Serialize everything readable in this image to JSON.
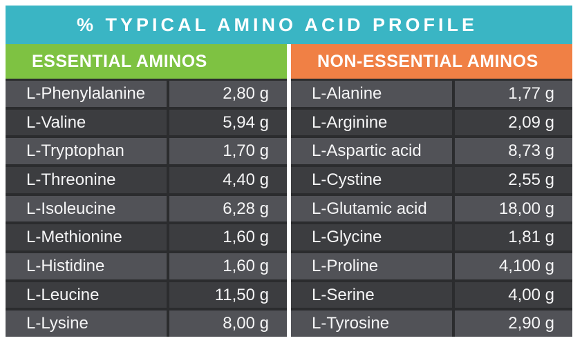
{
  "title": "% TYPICAL AMINO ACID PROFILE",
  "colors": {
    "title_bar": "#3AB5C4",
    "essential_header": "#7EC242",
    "non_essential_header": "#F08045",
    "row_light": "#515257",
    "row_dark": "#3C3D40",
    "divider": "#2B2C2E",
    "text": "#F5F5F6"
  },
  "columns": [
    {
      "header": "ESSENTIAL AMINOS",
      "rows": [
        {
          "name": "L-Phenylalanine",
          "value": "2,80 g"
        },
        {
          "name": "L-Valine",
          "value": "5,94 g"
        },
        {
          "name": "L-Tryptophan",
          "value": "1,70 g"
        },
        {
          "name": "L-Threonine",
          "value": "4,40 g"
        },
        {
          "name": "L-Isoleucine",
          "value": "6,28 g"
        },
        {
          "name": "L-Methionine",
          "value": "1,60 g"
        },
        {
          "name": "L-Histidine",
          "value": "1,60 g"
        },
        {
          "name": "L-Leucine",
          "value": "11,50 g"
        },
        {
          "name": "L-Lysine",
          "value": "8,00 g"
        }
      ]
    },
    {
      "header": "NON-ESSENTIAL AMINOS",
      "rows": [
        {
          "name": "L-Alanine",
          "value": "1,77 g"
        },
        {
          "name": "L-Arginine",
          "value": "2,09 g"
        },
        {
          "name": "L-Aspartic acid",
          "value": "8,73 g"
        },
        {
          "name": "L-Cystine",
          "value": "2,55 g"
        },
        {
          "name": "L-Glutamic acid",
          "value": "18,00 g"
        },
        {
          "name": "L-Glycine",
          "value": "1,81 g"
        },
        {
          "name": "L-Proline",
          "value": "4,100 g"
        },
        {
          "name": "L-Serine",
          "value": "4,00 g"
        },
        {
          "name": "L-Tyrosine",
          "value": "2,90 g"
        }
      ]
    }
  ],
  "chart_data": {
    "type": "table",
    "title": "% TYPICAL AMINO ACID PROFILE",
    "unit": "g",
    "sections": [
      {
        "header": "ESSENTIAL AMINOS",
        "rows": [
          [
            "L-Phenylalanine",
            "2,80 g"
          ],
          [
            "L-Valine",
            "5,94 g"
          ],
          [
            "L-Tryptophan",
            "1,70 g"
          ],
          [
            "L-Threonine",
            "4,40 g"
          ],
          [
            "L-Isoleucine",
            "6,28 g"
          ],
          [
            "L-Methionine",
            "1,60 g"
          ],
          [
            "L-Histidine",
            "1,60 g"
          ],
          [
            "L-Leucine",
            "11,50 g"
          ],
          [
            "L-Lysine",
            "8,00 g"
          ]
        ]
      },
      {
        "header": "NON-ESSENTIAL AMINOS",
        "rows": [
          [
            "L-Alanine",
            "1,77 g"
          ],
          [
            "L-Arginine",
            "2,09 g"
          ],
          [
            "L-Aspartic acid",
            "8,73 g"
          ],
          [
            "L-Cystine",
            "2,55 g"
          ],
          [
            "L-Glutamic acid",
            "18,00 g"
          ],
          [
            "L-Glycine",
            "1,81 g"
          ],
          [
            "L-Proline",
            "4,100 g"
          ],
          [
            "L-Serine",
            "4,00 g"
          ],
          [
            "L-Tyrosine",
            "2,90 g"
          ]
        ]
      }
    ]
  }
}
